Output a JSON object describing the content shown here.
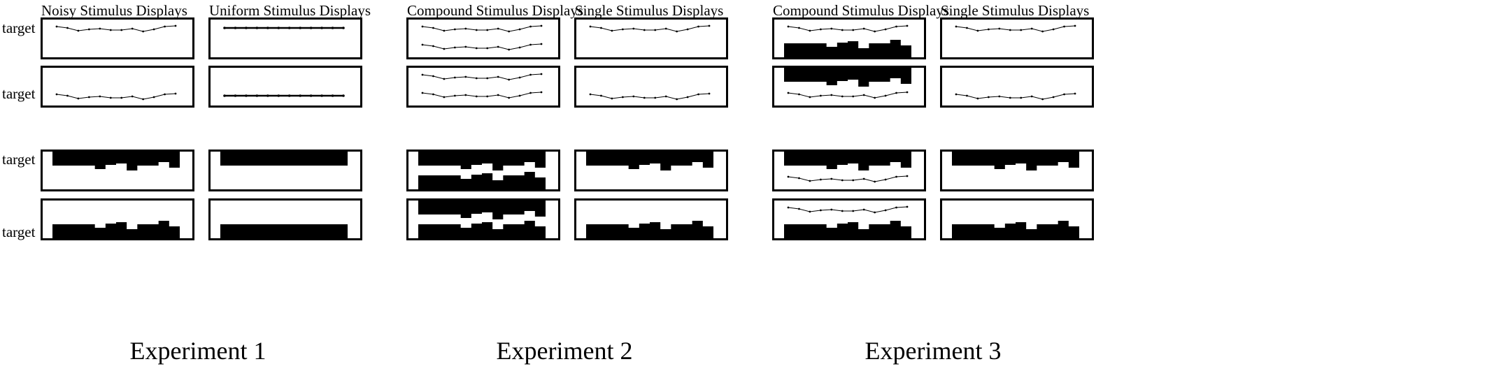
{
  "target_label": "target",
  "experiments": [
    {
      "label": "Experiment 1",
      "columns": [
        {
          "title": "Noisy Stimulus Displays",
          "panels": [
            {
              "target": "top",
              "bands": [
                {
                  "kind": "line",
                  "noise": "noisy"
                }
              ]
            },
            {
              "target": "bottom",
              "bands": [
                {
                  "kind": "line",
                  "noise": "noisy"
                }
              ]
            },
            {
              "target": "top",
              "bands": [
                {
                  "kind": "bar",
                  "noise": "noisy",
                  "orient": "down"
                }
              ]
            },
            {
              "target": "bottom",
              "bands": [
                {
                  "kind": "bar",
                  "noise": "noisy",
                  "orient": "up"
                }
              ]
            }
          ]
        },
        {
          "title": "Uniform Stimulus Displays",
          "panels": [
            {
              "target": "top",
              "bands": [
                {
                  "kind": "line",
                  "noise": "flat"
                }
              ]
            },
            {
              "target": "bottom",
              "bands": [
                {
                  "kind": "line",
                  "noise": "flat"
                }
              ]
            },
            {
              "target": "top",
              "bands": [
                {
                  "kind": "bar",
                  "noise": "flat",
                  "orient": "down"
                }
              ]
            },
            {
              "target": "bottom",
              "bands": [
                {
                  "kind": "bar",
                  "noise": "flat",
                  "orient": "up"
                }
              ]
            }
          ]
        }
      ]
    },
    {
      "label": "Experiment 2",
      "columns": [
        {
          "title": "Compound Stimulus Displays",
          "panels": [
            {
              "target": "top",
              "bands": [
                {
                  "kind": "line",
                  "noise": "noisy"
                },
                {
                  "kind": "line",
                  "noise": "noisy"
                }
              ]
            },
            {
              "target": "bottom",
              "bands": [
                {
                  "kind": "line",
                  "noise": "noisy"
                },
                {
                  "kind": "line",
                  "noise": "noisy"
                }
              ]
            },
            {
              "target": "top",
              "bands": [
                {
                  "kind": "bar",
                  "noise": "noisy",
                  "orient": "down"
                },
                {
                  "kind": "bar",
                  "noise": "noisy",
                  "orient": "up"
                }
              ]
            },
            {
              "target": "bottom",
              "bands": [
                {
                  "kind": "bar",
                  "noise": "noisy",
                  "orient": "down"
                },
                {
                  "kind": "bar",
                  "noise": "noisy",
                  "orient": "up"
                }
              ]
            }
          ]
        },
        {
          "title": "Single Stimulus Displays",
          "panels": [
            {
              "target": "top",
              "bands": [
                {
                  "kind": "line",
                  "noise": "noisy"
                }
              ]
            },
            {
              "target": "bottom",
              "bands": [
                {
                  "kind": "line",
                  "noise": "noisy"
                }
              ]
            },
            {
              "target": "top",
              "bands": [
                {
                  "kind": "bar",
                  "noise": "noisy",
                  "orient": "down"
                }
              ]
            },
            {
              "target": "bottom",
              "bands": [
                {
                  "kind": "bar",
                  "noise": "noisy",
                  "orient": "up"
                }
              ]
            }
          ]
        }
      ]
    },
    {
      "label": "Experiment 3",
      "columns": [
        {
          "title": "Compound Stimulus Displays",
          "panels": [
            {
              "target": "top",
              "bands": [
                {
                  "kind": "line",
                  "noise": "noisy"
                },
                {
                  "kind": "bar",
                  "noise": "noisy",
                  "orient": "up"
                }
              ]
            },
            {
              "target": "bottom",
              "bands": [
                {
                  "kind": "bar",
                  "noise": "noisy",
                  "orient": "down"
                },
                {
                  "kind": "line",
                  "noise": "noisy"
                }
              ]
            },
            {
              "target": "top",
              "bands": [
                {
                  "kind": "bar",
                  "noise": "noisy",
                  "orient": "down"
                },
                {
                  "kind": "line",
                  "noise": "noisy"
                }
              ]
            },
            {
              "target": "bottom",
              "bands": [
                {
                  "kind": "line",
                  "noise": "noisy"
                },
                {
                  "kind": "bar",
                  "noise": "noisy",
                  "orient": "up"
                }
              ]
            }
          ]
        },
        {
          "title": "Single Stimulus Displays",
          "panels": [
            {
              "target": "top",
              "bands": [
                {
                  "kind": "line",
                  "noise": "noisy"
                }
              ]
            },
            {
              "target": "bottom",
              "bands": [
                {
                  "kind": "line",
                  "noise": "noisy"
                }
              ]
            },
            {
              "target": "top",
              "bands": [
                {
                  "kind": "bar",
                  "noise": "noisy",
                  "orient": "down"
                }
              ]
            },
            {
              "target": "bottom",
              "bands": [
                {
                  "kind": "bar",
                  "noise": "noisy",
                  "orient": "up"
                }
              ]
            }
          ]
        }
      ]
    }
  ]
}
